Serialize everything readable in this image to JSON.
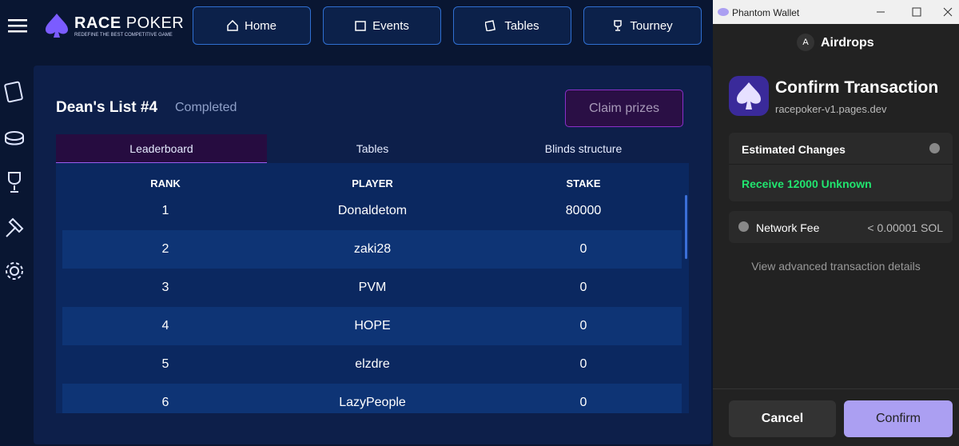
{
  "app": {
    "logo": {
      "brand_bold": "RACE",
      "brand_light": "POKER",
      "tagline": "REDEFINE THE BEST COMPETITIVE GAME"
    },
    "nav": [
      "Home",
      "Events",
      "Tables",
      "Tourney"
    ],
    "tournament": {
      "title": "Dean's List #4",
      "status": "Completed",
      "claim_button": "Claim prizes"
    },
    "tabs": [
      "Leaderboard",
      "Tables",
      "Blinds structure"
    ],
    "table": {
      "headers": [
        "RANK",
        "PLAYER",
        "STAKE"
      ],
      "rows": [
        [
          1,
          "Donaldetom",
          80000
        ],
        [
          2,
          "zaki28",
          0
        ],
        [
          3,
          "PVM",
          0
        ],
        [
          4,
          "HOPE",
          0
        ],
        [
          5,
          "elzdre",
          0
        ],
        [
          6,
          "LazyPeople",
          0
        ]
      ]
    }
  },
  "wallet": {
    "window_title": "Phantom Wallet",
    "account_initial": "A",
    "account_name": "Airdrops",
    "heading": "Confirm Transaction",
    "origin": "racepoker-v1.pages.dev",
    "estimated_changes": "Estimated Changes",
    "change": "Receive 12000 Unknown",
    "fee_label": "Network Fee",
    "fee_value": "< 0.00001 SOL",
    "advanced_link": "View advanced transaction details",
    "cancel": "Cancel",
    "confirm": "Confirm"
  }
}
